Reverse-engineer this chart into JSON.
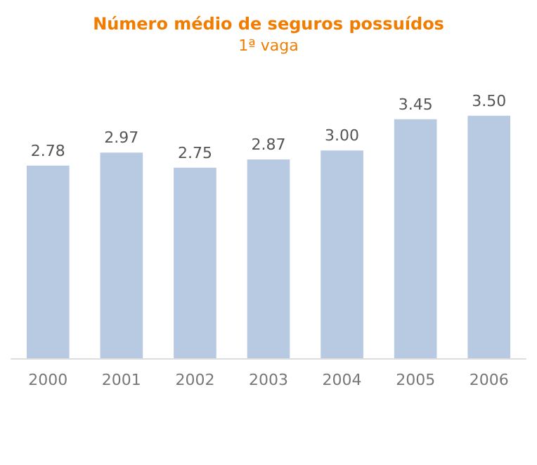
{
  "chart_data": {
    "type": "bar",
    "title": "Número médio de seguros possuídos",
    "subtitle": "1ª vaga",
    "categories": [
      "2000",
      "2001",
      "2002",
      "2003",
      "2004",
      "2005",
      "2006"
    ],
    "values": [
      2.78,
      2.97,
      2.75,
      2.87,
      3.0,
      3.45,
      3.5
    ],
    "value_labels": [
      "2.78",
      "2.97",
      "2.75",
      "2.87",
      "3.00",
      "3.45",
      "3.50"
    ],
    "color": "#b8c9e2"
  }
}
